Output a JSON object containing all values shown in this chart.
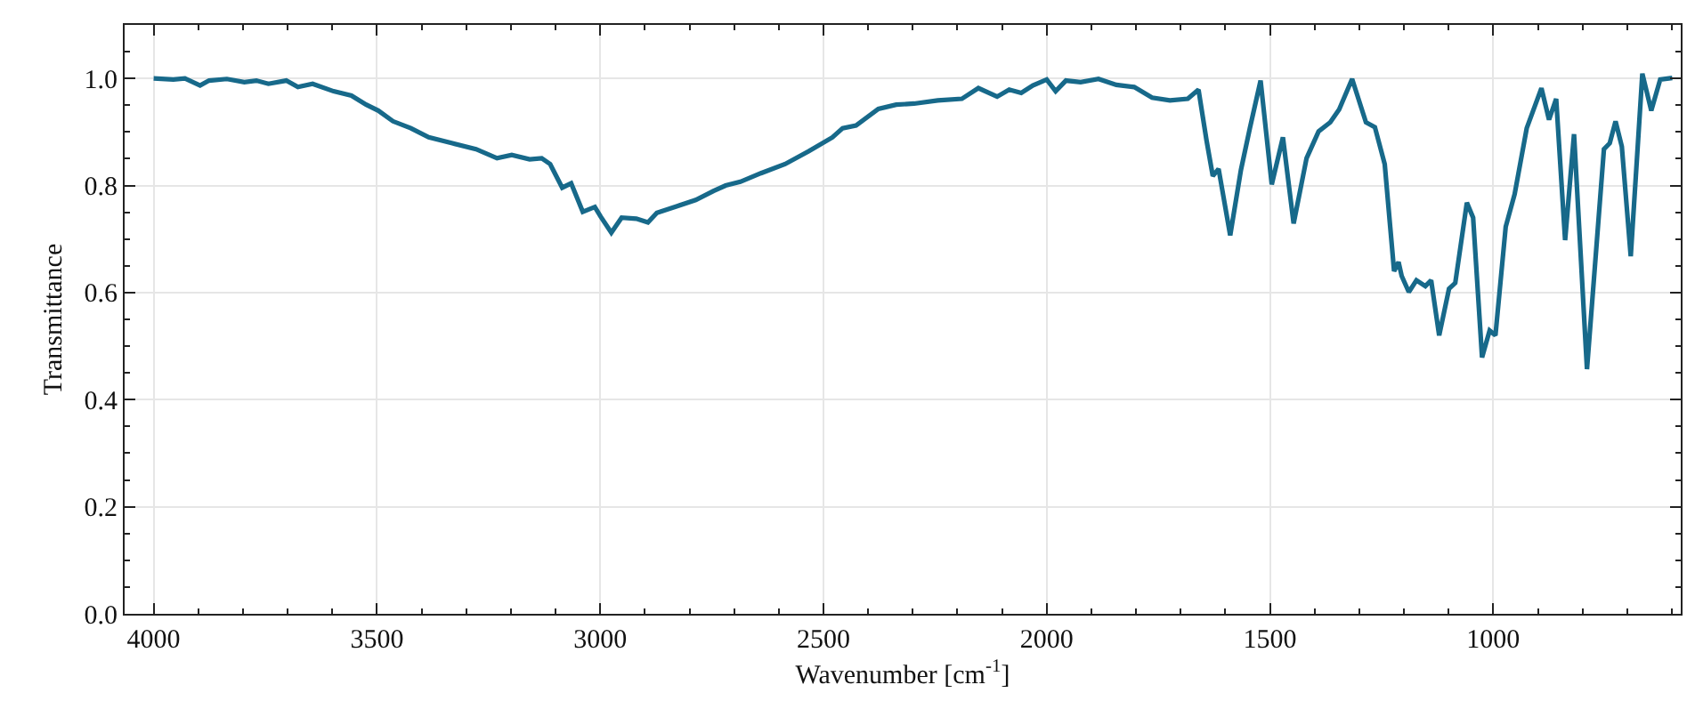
{
  "chart_data": {
    "type": "line",
    "xlabel": "Wavenumber [cm$^{-1}$]",
    "ylabel": "Transmittance",
    "xlim": [
      4065,
      580
    ],
    "ylim": [
      0,
      1.1
    ],
    "xticks": [
      4000,
      3500,
      3000,
      2500,
      2000,
      1500,
      1000
    ],
    "yticks": [
      {
        "value": 0,
        "label": "0.0"
      },
      0.2,
      0.4,
      0.6,
      0.8,
      {
        "value": 1,
        "label": "1.0"
      }
    ],
    "grid": true,
    "marker": "none",
    "line_style": "solid",
    "series": [
      {
        "color": "#17698a",
        "x": [
          4000,
          3956,
          3930,
          3896,
          3876,
          3836,
          3797,
          3770,
          3743,
          3703,
          3677,
          3644,
          3597,
          3557,
          3524,
          3497,
          3464,
          3424,
          3384,
          3331,
          3278,
          3231,
          3198,
          3158,
          3131,
          3112,
          3085,
          3065,
          3039,
          3012,
          2999,
          2975,
          2952,
          2919,
          2893,
          2873,
          2826,
          2786,
          2746,
          2719,
          2686,
          2640,
          2586,
          2533,
          2480,
          2457,
          2427,
          2377,
          2337,
          2297,
          2244,
          2190,
          2153,
          2111,
          2084,
          2057,
          2031,
          2000,
          1980,
          1957,
          1924,
          1884,
          1844,
          1804,
          1764,
          1724,
          1684,
          1660,
          1642,
          1628,
          1615,
          1589,
          1565,
          1545,
          1521,
          1496,
          1471,
          1447,
          1418,
          1391,
          1365,
          1345,
          1316,
          1285,
          1265,
          1243,
          1222,
          1212,
          1205,
          1189,
          1172,
          1152,
          1139,
          1121,
          1099,
          1085,
          1059,
          1045,
          1025,
          1008,
          995,
          972,
          952,
          925,
          892,
          875,
          859,
          839,
          819,
          790,
          752,
          739,
          726,
          712,
          692,
          666,
          646,
          626,
          599
        ],
        "values": [
          1.0,
          0.998,
          1.0,
          0.987,
          0.996,
          0.999,
          0.993,
          0.996,
          0.99,
          0.996,
          0.984,
          0.99,
          0.976,
          0.968,
          0.951,
          0.94,
          0.92,
          0.907,
          0.89,
          0.879,
          0.868,
          0.851,
          0.857,
          0.849,
          0.851,
          0.84,
          0.796,
          0.804,
          0.751,
          0.76,
          0.742,
          0.712,
          0.74,
          0.738,
          0.731,
          0.749,
          0.762,
          0.773,
          0.79,
          0.8,
          0.807,
          0.823,
          0.84,
          0.864,
          0.89,
          0.907,
          0.912,
          0.943,
          0.951,
          0.953,
          0.959,
          0.962,
          0.982,
          0.966,
          0.979,
          0.973,
          0.987,
          0.998,
          0.976,
          0.996,
          0.993,
          0.999,
          0.988,
          0.984,
          0.964,
          0.959,
          0.962,
          0.979,
          0.884,
          0.818,
          0.831,
          0.707,
          0.829,
          0.907,
          0.996,
          0.802,
          0.89,
          0.729,
          0.851,
          0.901,
          0.918,
          0.942,
          0.999,
          0.918,
          0.909,
          0.84,
          0.64,
          0.657,
          0.631,
          0.601,
          0.623,
          0.612,
          0.623,
          0.52,
          0.607,
          0.618,
          0.768,
          0.74,
          0.479,
          0.529,
          0.52,
          0.723,
          0.784,
          0.907,
          0.982,
          0.923,
          0.962,
          0.698,
          0.896,
          0.457,
          0.868,
          0.879,
          0.92,
          0.873,
          0.668,
          1.009,
          0.94,
          0.998,
          1.001
        ]
      }
    ]
  }
}
